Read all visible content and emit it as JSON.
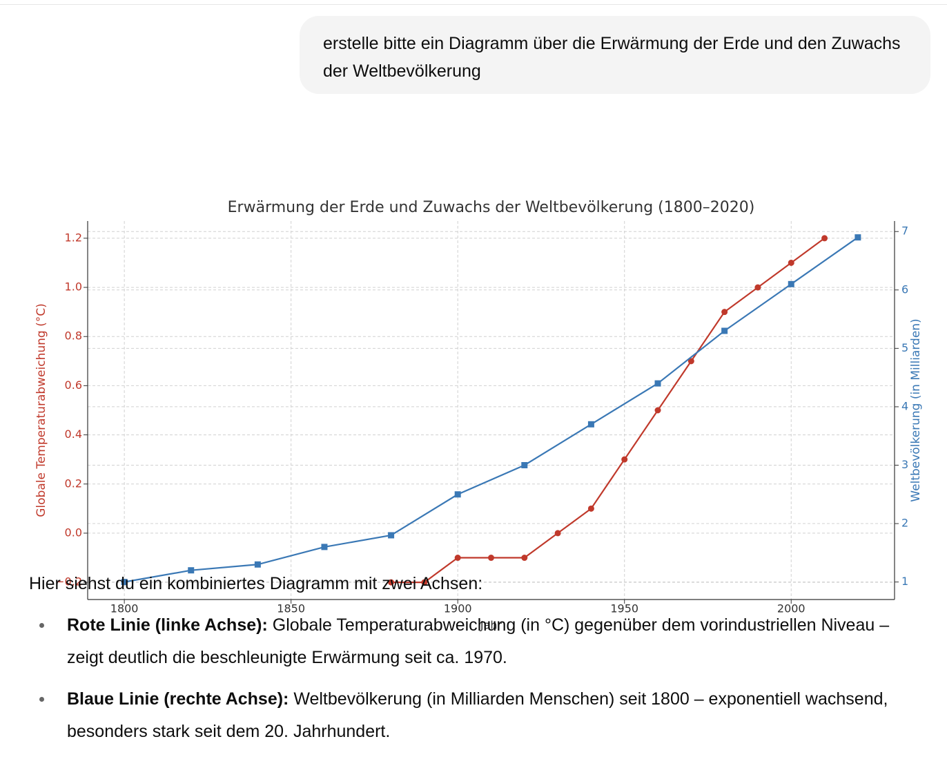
{
  "user_message": "erstelle bitte ein Diagramm über die Erwärmung der Erde und den Zuwachs der Weltbevölkerung",
  "chart_data": {
    "type": "line",
    "title": "Erwärmung der Erde und Zuwachs der Weltbevölkerung (1800–2020)",
    "x_label": "Jahr",
    "y_label": "Globale Temperaturabweichung (°C)",
    "y2_label": "Weltbevölkerung (in Milliarden)",
    "xlim": [
      1789,
      2031
    ],
    "xticks": [
      1800,
      1850,
      1900,
      1950,
      2000
    ],
    "ylim": [
      -0.27,
      1.27
    ],
    "yticks": [
      {
        "value": -0.2,
        "label": "−0.2"
      },
      {
        "value": 0,
        "label": "0.0"
      },
      0.2,
      0.4,
      0.6,
      0.8,
      {
        "value": 1,
        "label": "1.0"
      },
      1.2
    ],
    "y2lim": [
      0.7,
      7.18
    ],
    "y2ticks": [
      1,
      2,
      3,
      4,
      5,
      6,
      7
    ],
    "grid": true,
    "y_color": "#c0392b",
    "y2_color": "#3a78b5",
    "series": [
      {
        "name": "Temperaturabweichung",
        "color": "#c0392b",
        "marker": "circle",
        "x": [
          1880,
          1890,
          1900,
          1910,
          1920,
          1930,
          1940,
          1950,
          1960,
          1970,
          1980,
          1990,
          2000,
          2010
        ],
        "values": [
          -0.2,
          -0.2,
          -0.1,
          -0.1,
          -0.1,
          0.0,
          0.1,
          0.3,
          0.5,
          0.7,
          0.9,
          1.0,
          1.1,
          1.2
        ]
      },
      {
        "name": "Weltbevölkerung",
        "color": "#3a78b5",
        "marker": "square",
        "axis": "y2",
        "x": [
          1800,
          1820,
          1840,
          1860,
          1880,
          1900,
          1920,
          1940,
          1960,
          1980,
          2000,
          2020
        ],
        "values": [
          1.0,
          1.2,
          1.3,
          1.6,
          1.8,
          2.5,
          3.0,
          3.7,
          4.4,
          5.3,
          6.1,
          6.9
        ]
      }
    ]
  },
  "response": {
    "intro": "Hier siehst du ein kombiniertes Diagramm mit zwei Achsen:",
    "bullets": [
      {
        "label": "Rote Linie (linke Achse):",
        "text": " Globale Temperaturabweichung (in °C) gegenüber dem vorindustriellen Niveau – zeigt deutlich die beschleunigte Erwärmung seit ca. 1970."
      },
      {
        "label": "Blaue Linie (rechte Achse):",
        "text": " Weltbevölkerung (in Milliarden Menschen) seit 1800 – exponentiell wachsend, besonders stark seit dem 20. Jahrhundert."
      }
    ]
  }
}
